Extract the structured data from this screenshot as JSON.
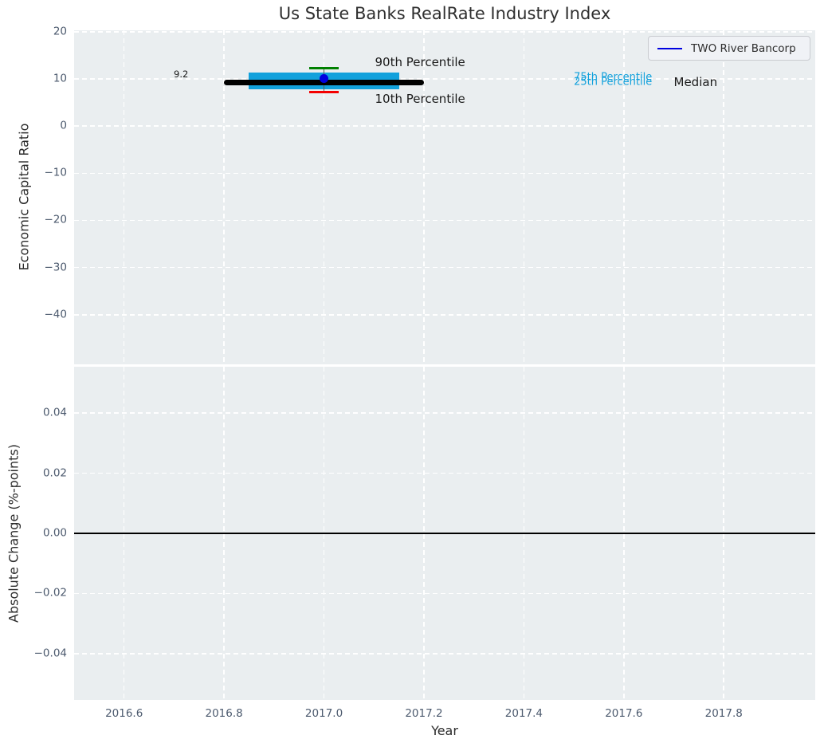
{
  "chart_data": [
    {
      "type": "box",
      "title": "Us State Banks RealRate Industry Index",
      "ylabel": "Economic Capital Ratio",
      "xlim": [
        2016.5,
        2017.983
      ],
      "ylim": [
        -50.5,
        20.3
      ],
      "xticks": [
        2016.6,
        2016.8,
        2017.0,
        2017.2,
        2017.4,
        2017.6,
        2017.8
      ],
      "yticks": [
        20,
        10,
        0,
        -10,
        -20,
        -30,
        -40
      ],
      "ytick_labels": [
        "20",
        "10",
        "0",
        "−10",
        "−20",
        "−30",
        "−40"
      ],
      "grid": "white-dashed",
      "legend_position": "upper right",
      "legend_entries": [
        {
          "label": "TWO River Bancorp",
          "color": "#0000e0"
        }
      ],
      "series": {
        "year": 2017.0,
        "p90": 12.2,
        "p75": 11.35,
        "median": 9.2,
        "p25": 7.75,
        "p10": 7.2,
        "company_value": 10.15,
        "median_label": "9.2",
        "box_half_width": 0.15,
        "median_half_width": 0.2,
        "whisker_half_width": 0.02
      },
      "colors": {
        "box": "#12a1dc",
        "median": "#000000",
        "p90": "#008000",
        "p10": "#f40000",
        "company": "#0000e0",
        "stem": "#5a5a5a"
      },
      "annotations": [
        {
          "text": "9.2",
          "x": 2016.714,
          "y": 11.0,
          "align": "center",
          "size": 11.5,
          "color": "#1a1a1a"
        },
        {
          "text": "90th Percentile",
          "x": 2017.102,
          "y": 13.55,
          "align": "left",
          "size": 15,
          "color": "#1a1a1a"
        },
        {
          "text": "10th Percentile",
          "x": 2017.102,
          "y": 5.78,
          "align": "left",
          "size": 15,
          "color": "#1a1a1a"
        },
        {
          "text": "75th Percentile",
          "x": 2017.5,
          "y": 10.3,
          "align": "left",
          "size": 13,
          "color": "#12a1dc"
        },
        {
          "text": "25th Percentile",
          "x": 2017.5,
          "y": 9.35,
          "align": "left",
          "size": 13,
          "color": "#12a1dc"
        },
        {
          "text": "Median",
          "x": 2017.7,
          "y": 9.3,
          "align": "left",
          "size": 15,
          "color": "#1a1a1a"
        }
      ]
    },
    {
      "type": "line",
      "ylabel": "Absolute Change (%-points)",
      "xlabel": "Year",
      "xlim": [
        2016.5,
        2017.983
      ],
      "ylim": [
        -0.0554,
        0.0554
      ],
      "xticks": [
        2016.6,
        2016.8,
        2017.0,
        2017.2,
        2017.4,
        2017.6,
        2017.8
      ],
      "xtick_labels": [
        "2016.6",
        "2016.8",
        "2017.0",
        "2017.2",
        "2017.4",
        "2017.6",
        "2017.8"
      ],
      "yticks": [
        0.04,
        0.02,
        0.0,
        -0.02,
        -0.04
      ],
      "ytick_labels": [
        "0.04",
        "0.02",
        "0.00",
        "−0.02",
        "−0.04"
      ],
      "grid": "white-dashed",
      "hline": {
        "y": 0.0,
        "color": "#000000"
      },
      "series": []
    }
  ]
}
